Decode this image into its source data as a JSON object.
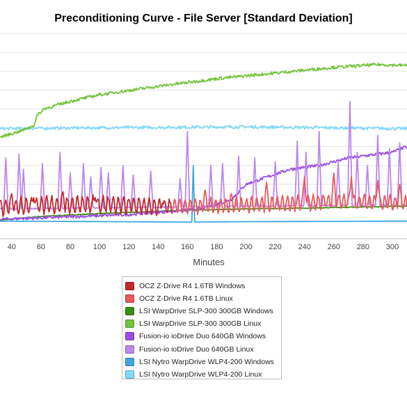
{
  "chart_data": {
    "type": "line",
    "title": "Preconditioning Curve - File Server [Standard Deviation]",
    "xlabel": "Minutes",
    "ylabel": "",
    "x_ticks": [
      "40",
      "60",
      "80",
      "100",
      "120",
      "140",
      "160",
      "180",
      "200",
      "220",
      "240",
      "260",
      "280",
      "300"
    ],
    "xlim": [
      32,
      310
    ],
    "ylim": [
      0,
      10
    ],
    "grid": true,
    "legend_position": "bottom-center",
    "series": [
      {
        "name": "OCZ Z-Drive R4 1.6TB Windows",
        "color": "#c0282b",
        "style": "oscillate",
        "points": [
          [
            32,
            0.8
          ],
          [
            60,
            0.9
          ],
          [
            100,
            0.95
          ],
          [
            150,
            0.8
          ]
        ],
        "amp": 0.45,
        "period": 3.5,
        "spikes": [
          [
            40,
            1.5
          ],
          [
            55,
            1.3
          ],
          [
            75,
            1.6
          ],
          [
            97,
            1.3
          ],
          [
            120,
            1.2
          ],
          [
            143,
            1.0
          ]
        ]
      },
      {
        "name": "OCZ Z-Drive R4 1.6TB Linux",
        "color": "#e8595b",
        "style": "oscillate",
        "points": [
          [
            150,
            0.85
          ],
          [
            200,
            0.9
          ],
          [
            260,
            1.1
          ],
          [
            310,
            1.0
          ]
        ],
        "amp": 0.4,
        "period": 3.5,
        "spikes": [
          [
            172,
            1.7
          ],
          [
            190,
            1.5
          ],
          [
            214,
            2.1
          ],
          [
            240,
            2.4
          ],
          [
            260,
            2.6
          ],
          [
            272,
            2.4
          ],
          [
            290,
            2.2
          ],
          [
            305,
            2.0
          ]
        ]
      },
      {
        "name": "LSI WarpDrive SLP-300 300GB Windows",
        "color": "#3a8f0e",
        "style": "smooth",
        "points": [
          [
            32,
            0.1
          ],
          [
            60,
            0.3
          ],
          [
            100,
            0.45
          ],
          [
            150,
            0.6
          ],
          [
            200,
            0.7
          ],
          [
            250,
            0.75
          ],
          [
            310,
            0.85
          ]
        ]
      },
      {
        "name": "LSI WarpDrive SLP-300 300GB Linux",
        "color": "#71c43c",
        "style": "noisy",
        "points": [
          [
            32,
            4.5
          ],
          [
            45,
            4.8
          ],
          [
            55,
            5.1
          ],
          [
            57,
            5.6
          ],
          [
            62,
            6.0
          ],
          [
            80,
            6.4
          ],
          [
            100,
            6.75
          ],
          [
            140,
            7.2
          ],
          [
            180,
            7.6
          ],
          [
            220,
            7.9
          ],
          [
            260,
            8.2
          ],
          [
            290,
            8.35
          ],
          [
            310,
            8.3
          ]
        ]
      },
      {
        "name": "Fusion-io ioDrive Duo 640GB Windows",
        "color": "#9a4de2",
        "style": "noisy",
        "points": [
          [
            32,
            0.15
          ],
          [
            70,
            0.25
          ],
          [
            120,
            0.4
          ],
          [
            170,
            0.7
          ],
          [
            190,
            1.2
          ],
          [
            200,
            2.0
          ],
          [
            215,
            2.4
          ],
          [
            230,
            2.8
          ],
          [
            250,
            3.0
          ],
          [
            270,
            3.4
          ],
          [
            290,
            3.6
          ],
          [
            300,
            3.7
          ],
          [
            310,
            4.0
          ]
        ]
      },
      {
        "name": "Fusion-io ioDrive Duo 640GB Linux",
        "color": "#bb86ee",
        "style": "spiky",
        "points": [
          [
            32,
            0.7
          ],
          [
            100,
            0.75
          ],
          [
            200,
            0.85
          ],
          [
            310,
            0.9
          ]
        ],
        "spikes": [
          [
            36,
            3.4
          ],
          [
            45,
            3.6
          ],
          [
            48,
            2.8
          ],
          [
            61,
            3.1
          ],
          [
            73,
            3.7
          ],
          [
            80,
            2.6
          ],
          [
            89,
            3.1
          ],
          [
            94,
            2.4
          ],
          [
            101,
            2.9
          ],
          [
            106,
            2.6
          ],
          [
            116,
            3.0
          ],
          [
            123,
            2.5
          ],
          [
            135,
            2.7
          ],
          [
            155,
            2.3
          ],
          [
            160,
            4.8
          ],
          [
            176,
            3.0
          ],
          [
            184,
            3.1
          ],
          [
            195,
            3.5
          ],
          [
            206,
            3.4
          ],
          [
            220,
            3.2
          ],
          [
            235,
            4.3
          ],
          [
            241,
            3.7
          ],
          [
            250,
            4.8
          ],
          [
            263,
            3.2
          ],
          [
            271,
            6.4
          ],
          [
            276,
            3.7
          ],
          [
            283,
            3.0
          ],
          [
            290,
            4.6
          ],
          [
            298,
            3.9
          ],
          [
            305,
            4.2
          ]
        ]
      },
      {
        "name": "LSI Nytro WarpDrive WLP4-200 Windows",
        "color": "#3fa7e0",
        "style": "flat",
        "points": [
          [
            32,
            0.05
          ],
          [
            160,
            0.0
          ],
          [
            163,
            0.0
          ],
          [
            164,
            3.0
          ],
          [
            165,
            0.0
          ],
          [
            200,
            0.02
          ],
          [
            310,
            0.05
          ]
        ]
      },
      {
        "name": "LSI Nytro WarpDrive WLP4-200 Linux",
        "color": "#82d9f7",
        "style": "noisy",
        "points": [
          [
            32,
            4.95
          ],
          [
            100,
            5.0
          ],
          [
            200,
            5.05
          ],
          [
            310,
            4.95
          ]
        ]
      }
    ]
  }
}
